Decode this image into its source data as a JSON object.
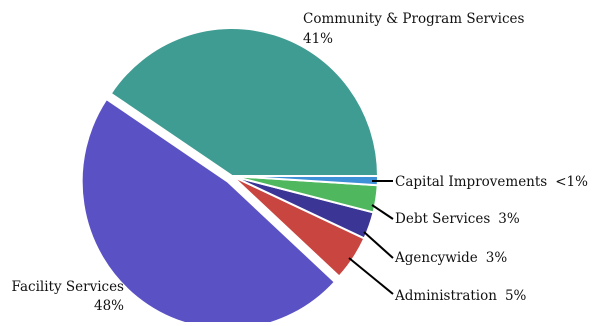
{
  "chart_data": {
    "type": "pie",
    "title": "",
    "slices": [
      {
        "label": "Community & Program Services",
        "percent_label": "41%",
        "value": 41,
        "color": "#3f9c92"
      },
      {
        "label": "Capital Improvements",
        "percent_label": "<1%",
        "value": 1,
        "color": "#3d8fd6"
      },
      {
        "label": "Debt Services",
        "percent_label": "3%",
        "value": 3,
        "color": "#4fb85f"
      },
      {
        "label": "Agencywide",
        "percent_label": "3%",
        "value": 3,
        "color": "#3b3596"
      },
      {
        "label": "Administration",
        "percent_label": "5%",
        "value": 5,
        "color": "#c84540"
      },
      {
        "label": "Facility Services",
        "percent_label": "48%",
        "value": 48,
        "color": "#5a52c4"
      }
    ],
    "legend": "none",
    "grid": false
  }
}
